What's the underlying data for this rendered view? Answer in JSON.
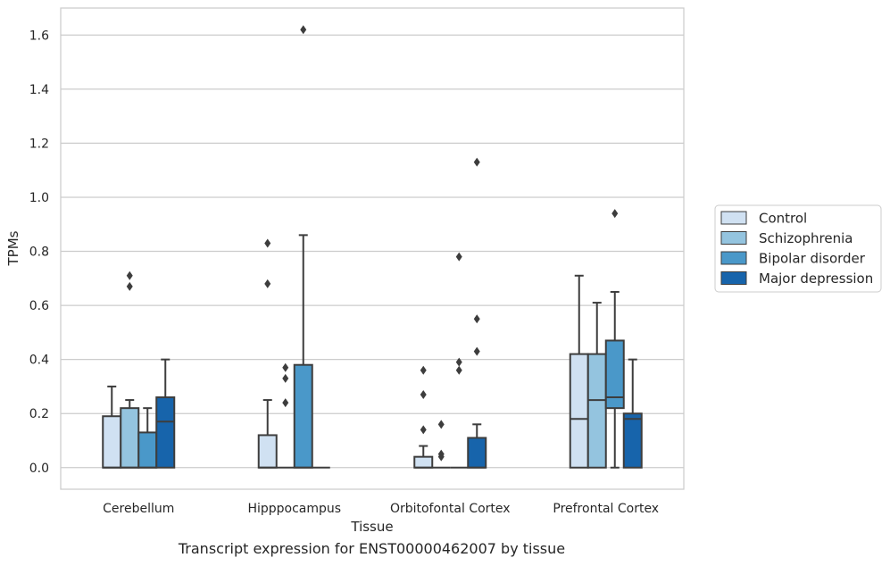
{
  "caption": "Transcript expression for ENST00000462007 by tissue",
  "chart_data": {
    "type": "box",
    "xlabel": "Tissue",
    "ylabel": "TPMs",
    "ylim": [
      -0.08,
      1.7
    ],
    "yticks": [
      "0.0",
      "0.2",
      "0.4",
      "0.6",
      "0.8",
      "1.0",
      "1.2",
      "1.4",
      "1.6"
    ],
    "categories": [
      "Cerebellum",
      "Hipppocampus",
      "Orbitofontal Cortex",
      "Prefrontal Cortex"
    ],
    "grid": "horizontal",
    "legend_position": "right",
    "series": [
      {
        "name": "Control",
        "color": "#d0e1f2",
        "boxes": [
          {
            "q1": 0.0,
            "median": 0.0,
            "q3": 0.19,
            "wlo": 0.0,
            "whi": 0.3,
            "outliers": []
          },
          {
            "q1": 0.0,
            "median": 0.0,
            "q3": 0.12,
            "wlo": 0.0,
            "whi": 0.25,
            "outliers": [
              0.68,
              0.83
            ]
          },
          {
            "q1": 0.0,
            "median": 0.0,
            "q3": 0.04,
            "wlo": 0.0,
            "whi": 0.08,
            "outliers": [
              0.14,
              0.27,
              0.36
            ]
          },
          {
            "q1": 0.0,
            "median": 0.18,
            "q3": 0.42,
            "wlo": 0.0,
            "whi": 0.71,
            "outliers": []
          }
        ]
      },
      {
        "name": "Schizophrenia",
        "color": "#94c4df",
        "boxes": [
          {
            "q1": 0.0,
            "median": 0.0,
            "q3": 0.22,
            "wlo": 0.0,
            "whi": 0.25,
            "outliers": [
              0.67,
              0.71
            ]
          },
          {
            "q1": 0.0,
            "median": 0.0,
            "q3": 0.0,
            "wlo": 0.0,
            "whi": 0.0,
            "outliers": [
              0.24,
              0.33,
              0.37
            ]
          },
          {
            "q1": 0.0,
            "median": 0.0,
            "q3": 0.0,
            "wlo": 0.0,
            "whi": 0.0,
            "outliers": [
              0.04,
              0.05,
              0.16
            ]
          },
          {
            "q1": 0.0,
            "median": 0.25,
            "q3": 0.42,
            "wlo": 0.0,
            "whi": 0.61,
            "outliers": []
          }
        ]
      },
      {
        "name": "Bipolar disorder",
        "color": "#4a98c9",
        "boxes": [
          {
            "q1": 0.0,
            "median": 0.0,
            "q3": 0.13,
            "wlo": 0.0,
            "whi": 0.22,
            "outliers": []
          },
          {
            "q1": 0.0,
            "median": 0.0,
            "q3": 0.38,
            "wlo": 0.0,
            "whi": 0.86,
            "outliers": [
              1.62
            ]
          },
          {
            "q1": 0.0,
            "median": 0.0,
            "q3": 0.0,
            "wlo": 0.0,
            "whi": 0.0,
            "outliers": [
              0.36,
              0.39,
              0.78
            ]
          },
          {
            "q1": 0.22,
            "median": 0.26,
            "q3": 0.47,
            "wlo": 0.0,
            "whi": 0.65,
            "outliers": [
              0.94
            ]
          }
        ]
      },
      {
        "name": "Major depression",
        "color": "#1764ab",
        "boxes": [
          {
            "q1": 0.0,
            "median": 0.17,
            "q3": 0.26,
            "wlo": 0.0,
            "whi": 0.4,
            "outliers": []
          },
          {
            "q1": 0.0,
            "median": 0.0,
            "q3": 0.0,
            "wlo": 0.0,
            "whi": 0.0,
            "outliers": []
          },
          {
            "q1": 0.0,
            "median": 0.0,
            "q3": 0.11,
            "wlo": 0.0,
            "whi": 0.16,
            "outliers": [
              0.43,
              0.55,
              1.13
            ]
          },
          {
            "q1": 0.0,
            "median": 0.18,
            "q3": 0.2,
            "wlo": 0.0,
            "whi": 0.4,
            "outliers": []
          }
        ]
      }
    ]
  }
}
